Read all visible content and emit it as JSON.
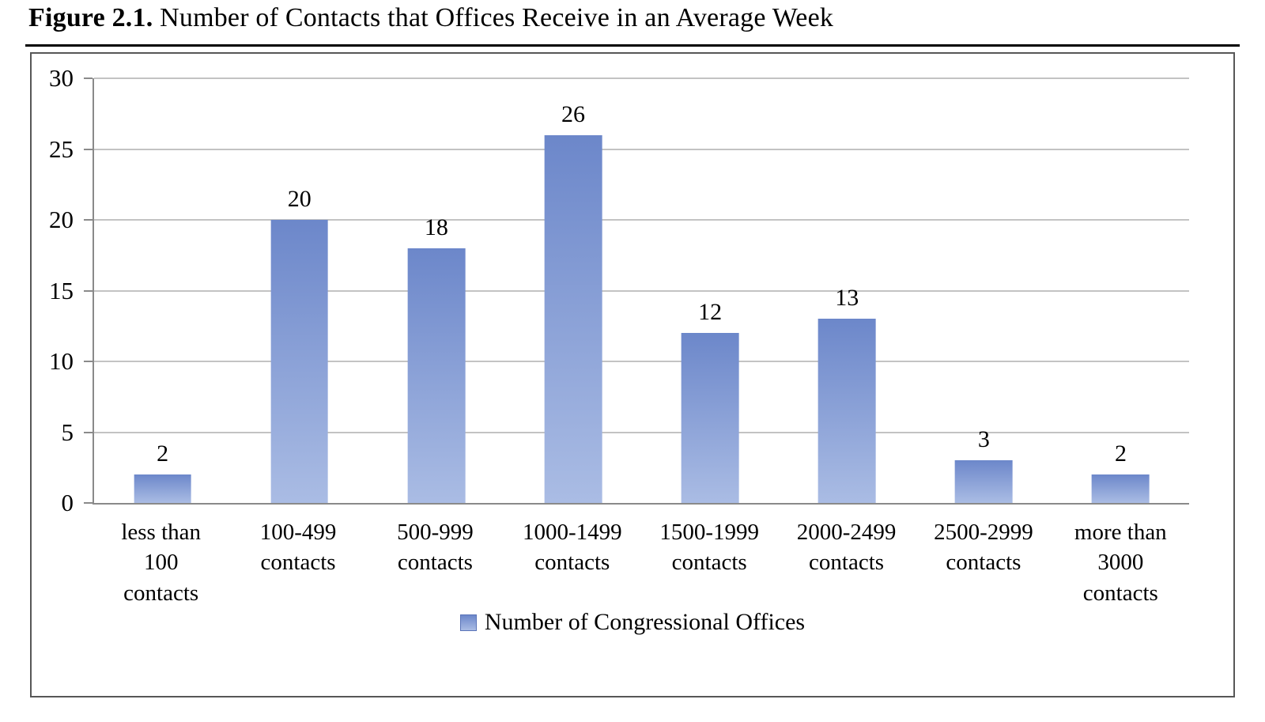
{
  "figure": {
    "title_prefix": "Figure 2.1.",
    "title_rest": "Number of Contacts that Offices Receive in an Average Week"
  },
  "chart_data": {
    "type": "bar",
    "title": "Figure 2.1. Number of Contacts that Offices Receive in an Average Week",
    "categories": [
      "less than 100 contacts",
      "100-499 contacts",
      "500-999 contacts",
      "1000-1499 contacts",
      "1500-1999 contacts",
      "2000-2499 contacts",
      "2500-2999 contacts",
      "more than 3000 contacts"
    ],
    "tick_labels": [
      "less than\n100\ncontacts",
      "100-499\ncontacts",
      "500-999\ncontacts",
      "1000-1499\ncontacts",
      "1500-1999\ncontacts",
      "2000-2499\ncontacts",
      "2500-2999\ncontacts",
      "more than\n3000\ncontacts"
    ],
    "values": [
      2,
      20,
      18,
      26,
      12,
      13,
      3,
      2
    ],
    "value_labels": [
      "2",
      "20",
      "18",
      "26",
      "12",
      "13",
      "3",
      "2"
    ],
    "xlabel": "",
    "ylabel": "",
    "ylim": [
      0,
      30
    ],
    "yticks": [
      0,
      5,
      10,
      15,
      20,
      25,
      30
    ],
    "grid": true,
    "legend": "Number of Congressional Offices",
    "legend_position": "bottom-center",
    "colors": {
      "bar_top": "#6c87ca",
      "bar_bottom": "#aabce4",
      "gridline": "#c3c3c3",
      "axis": "#8a8a8a",
      "legend_border": "#5a74b8"
    }
  }
}
